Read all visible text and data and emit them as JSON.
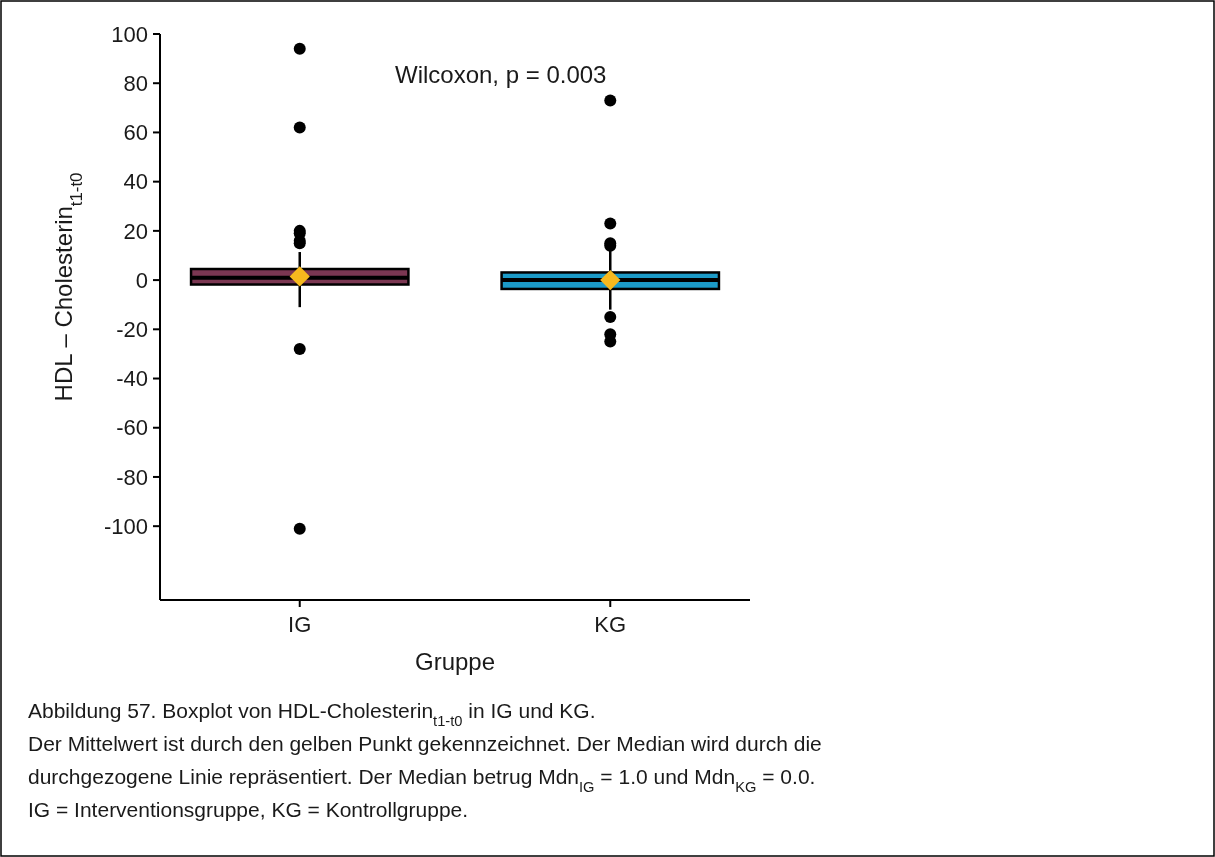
{
  "chart_data": {
    "type": "box",
    "categories": [
      "IG",
      "KG"
    ],
    "xlabel": "Gruppe",
    "ylabel": "HDL – Cholesterin$_{t1-t0}$",
    "ylim": [
      -130,
      100
    ],
    "yticks": [
      -100,
      -80,
      -60,
      -40,
      -20,
      0,
      20,
      40,
      60,
      80,
      100
    ],
    "colors": [
      "#7b3752",
      "#1c9bc8"
    ],
    "boxes": [
      {
        "low": -11,
        "q1": -1.8,
        "median": 1,
        "q3": 4.5,
        "high": 11.4,
        "mean": 1.5,
        "outliers": [
          94,
          62,
          20,
          19,
          16,
          15,
          -28,
          -101
        ]
      },
      {
        "low": -12,
        "q1": -3.6,
        "median": 0,
        "q3": 3.1,
        "high": 12,
        "mean": 0,
        "outliers": [
          73,
          23,
          15,
          14,
          -15,
          -22,
          -25
        ]
      }
    ],
    "grid": false,
    "annotations": [
      "Wilcoxon, p = 0.003",
      "Abbildung 57. Boxplot von HDL-Cholesterin$_{t1-t0}$ in IG und KG.",
      "Der Mittelwert ist durch den gelben Punkt gekennzeichnet. Der Median wird durch die",
      "durchgezogene Linie repräsentiert. Der Median betrug Mdn$_{IG}$ = 1.0 und Mdn$_{KG}$ = 0.0.",
      "IG = Interventionsgruppe, KG = Kontrollgruppe."
    ]
  }
}
